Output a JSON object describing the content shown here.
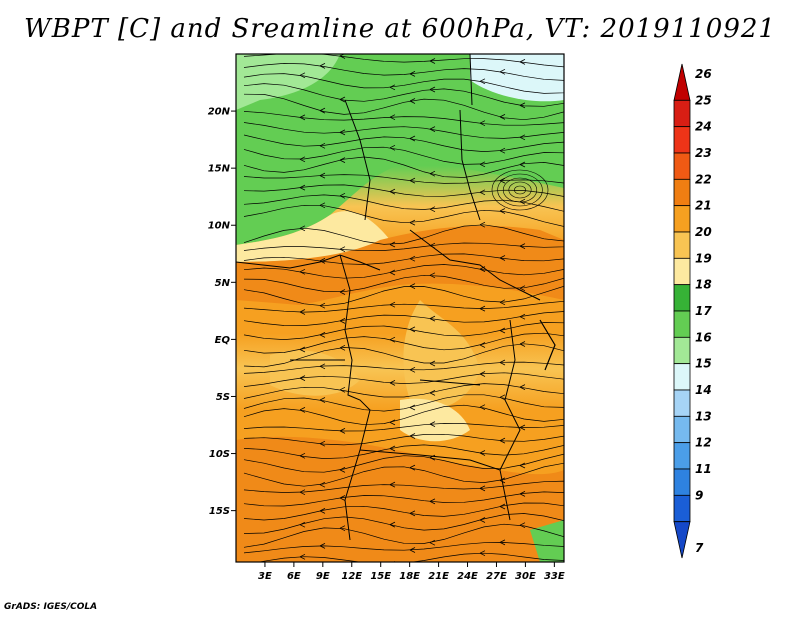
{
  "title": "WBPT [C] and Sreamline at 600hPa, VT: 2019110921",
  "footer": "GrADS: IGES/COLA",
  "map": {
    "lat_labels": [
      "20N",
      "15N",
      "10N",
      "5N",
      "EQ",
      "5S",
      "10S",
      "15S"
    ],
    "lat_values": [
      20,
      15,
      10,
      5,
      0,
      -5,
      -10,
      -15
    ],
    "lon_labels": [
      "3E",
      "6E",
      "9E",
      "12E",
      "15E",
      "18E",
      "21E",
      "24E",
      "27E",
      "30E",
      "33E"
    ],
    "lon_values": [
      3,
      6,
      9,
      12,
      15,
      18,
      21,
      24,
      27,
      30,
      33
    ],
    "lat_range": [
      -19.5,
      25
    ],
    "lon_range": [
      0,
      34
    ]
  },
  "colorbar": {
    "levels": [
      "26",
      "25",
      "24",
      "23",
      "22",
      "21",
      "20",
      "19",
      "18",
      "17",
      "16",
      "15",
      "14",
      "13",
      "12",
      "11",
      "9",
      "7"
    ],
    "colors": [
      "#c00000",
      "#d81e14",
      "#ee3418",
      "#f05a14",
      "#f07e12",
      "#f6a020",
      "#f8c453",
      "#fde9a0",
      "#36b236",
      "#63cd53",
      "#a2e896",
      "#dcf7f9",
      "#a6d4f6",
      "#76baef",
      "#4b9ee8",
      "#2e82e0",
      "#1a5ed6",
      "#1548c8"
    ]
  }
}
